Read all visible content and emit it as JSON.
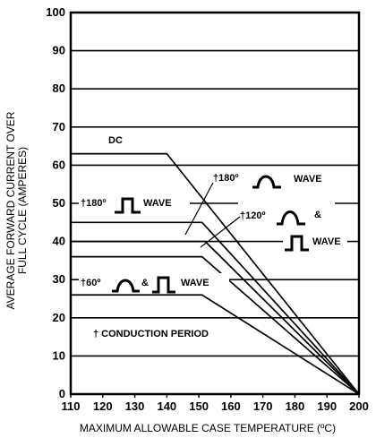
{
  "chart_data": {
    "type": "line",
    "title": "",
    "xlabel": "MAXIMUM ALLOWABLE CASE TEMPERATURE (ºC)",
    "ylabel_line1": "AVERAGE FORWARD CURRENT OVER",
    "ylabel_line2": "FULL CYCLE (AMPERES)",
    "xlim": [
      110,
      200
    ],
    "ylim": [
      0,
      100
    ],
    "x_ticks": [
      "110",
      "120",
      "130",
      "140",
      "150",
      "160",
      "170",
      "180",
      "190",
      "200"
    ],
    "y_ticks": [
      "0",
      "10",
      "20",
      "30",
      "40",
      "50",
      "60",
      "70",
      "80",
      "90",
      "100"
    ],
    "grid": "horizontal",
    "series": [
      {
        "name": "DC",
        "x": [
          110,
          140,
          200
        ],
        "y": [
          63,
          63,
          0
        ]
      },
      {
        "x": [
          110,
          151,
          200
        ],
        "y": [
          45,
          45,
          0
        ]
      },
      {
        "x": [
          110,
          152,
          200
        ],
        "y": [
          40,
          40,
          0
        ]
      },
      {
        "x": [
          110,
          151,
          200
        ],
        "y": [
          36,
          36,
          0
        ]
      },
      {
        "x": [
          110,
          151,
          200
        ],
        "y": [
          26,
          26,
          0
        ]
      }
    ],
    "annotations": {
      "dc": "DC",
      "square_180_prefix": "†180º",
      "square_180_suffix": "WAVE",
      "sine_180_prefix": "†180º",
      "sine_180_suffix": "WAVE",
      "sine_120_prefix": "†120º",
      "amp": "&",
      "square_120_suffix": "WAVE",
      "w60_prefix": "†60º",
      "w60_amp": "&",
      "w60_suffix": "WAVE",
      "conduction": "† CONDUCTION PERIOD"
    }
  }
}
